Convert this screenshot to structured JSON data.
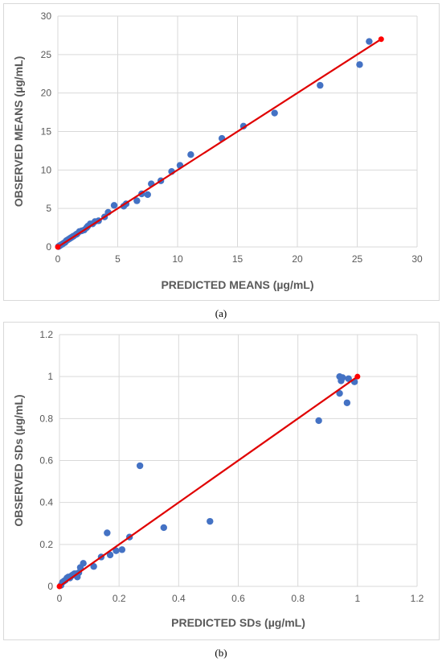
{
  "captions": {
    "a": "(a)",
    "b": "(b)"
  },
  "colors": {
    "point": "#4472c4",
    "fit_line": "#e00000",
    "fit_end_point": "#ff0000",
    "grid": "#d9d9d9",
    "text": "#595959"
  },
  "chart_data": [
    {
      "type": "scatter",
      "xlabel": "PREDICTED MEANS (µg/mL)",
      "ylabel": "OBSERVED MEANS (µg/mL)",
      "xlim": [
        0,
        30
      ],
      "ylim": [
        0,
        30
      ],
      "xticks": [
        "0",
        "5",
        "10",
        "15",
        "20",
        "25",
        "30"
      ],
      "yticks": [
        "0",
        "5",
        "10",
        "15",
        "20",
        "25",
        "30"
      ],
      "grid": true,
      "points": {
        "x": [
          0.05,
          0.1,
          0.15,
          0.2,
          0.3,
          0.4,
          0.5,
          0.6,
          0.7,
          0.8,
          0.9,
          1.0,
          1.1,
          1.2,
          1.3,
          1.5,
          1.6,
          1.8,
          2.0,
          2.2,
          2.4,
          2.5,
          2.7,
          2.9,
          3.1,
          3.4,
          3.9,
          4.2,
          4.7,
          5.5,
          5.7,
          6.6,
          7.0,
          7.5,
          7.8,
          8.6,
          9.5,
          10.2,
          11.1,
          13.7,
          15.5,
          18.1,
          21.9,
          25.2,
          26.0
        ],
        "y": [
          0.05,
          0.1,
          0.15,
          0.2,
          0.3,
          0.4,
          0.5,
          0.6,
          0.8,
          0.9,
          1.0,
          1.1,
          1.2,
          1.3,
          1.4,
          1.6,
          1.7,
          2.0,
          2.1,
          2.2,
          2.5,
          2.7,
          3.0,
          3.0,
          3.3,
          3.4,
          3.9,
          4.5,
          5.4,
          5.3,
          5.6,
          6.0,
          6.9,
          6.8,
          8.2,
          8.6,
          9.8,
          10.6,
          12.0,
          14.1,
          15.7,
          17.4,
          21.0,
          23.7,
          26.7
        ]
      },
      "fit_line": {
        "x": [
          0,
          27
        ],
        "y": [
          0,
          27
        ]
      }
    },
    {
      "type": "scatter",
      "xlabel": "PREDICTED SDs (µg/mL)",
      "ylabel": "OBSERVED SDs (µg/mL)",
      "xlim": [
        0,
        1.2
      ],
      "ylim": [
        0,
        1.2
      ],
      "xticks": [
        "0",
        "0.2",
        "0.4",
        "0.6",
        "0.8",
        "1",
        "1.2"
      ],
      "yticks": [
        "0",
        "0.2",
        "0.4",
        "0.6",
        "0.8",
        "1",
        "1.2"
      ],
      "grid": true,
      "points": {
        "x": [
          0.005,
          0.01,
          0.015,
          0.02,
          0.025,
          0.03,
          0.035,
          0.04,
          0.045,
          0.05,
          0.055,
          0.06,
          0.065,
          0.07,
          0.08,
          0.115,
          0.14,
          0.16,
          0.17,
          0.19,
          0.21,
          0.235,
          0.27,
          0.35,
          0.505,
          0.87,
          0.94,
          0.94,
          0.945,
          0.95,
          0.965,
          0.97,
          0.99
        ],
        "y": [
          0.005,
          0.02,
          0.025,
          0.03,
          0.04,
          0.045,
          0.04,
          0.05,
          0.055,
          0.06,
          0.06,
          0.045,
          0.065,
          0.09,
          0.11,
          0.095,
          0.14,
          0.255,
          0.15,
          0.17,
          0.175,
          0.235,
          0.575,
          0.28,
          0.31,
          0.79,
          1.0,
          0.92,
          0.98,
          0.995,
          0.875,
          0.99,
          0.975
        ]
      },
      "fit_line": {
        "x": [
          0,
          1
        ],
        "y": [
          0,
          1
        ]
      }
    }
  ]
}
